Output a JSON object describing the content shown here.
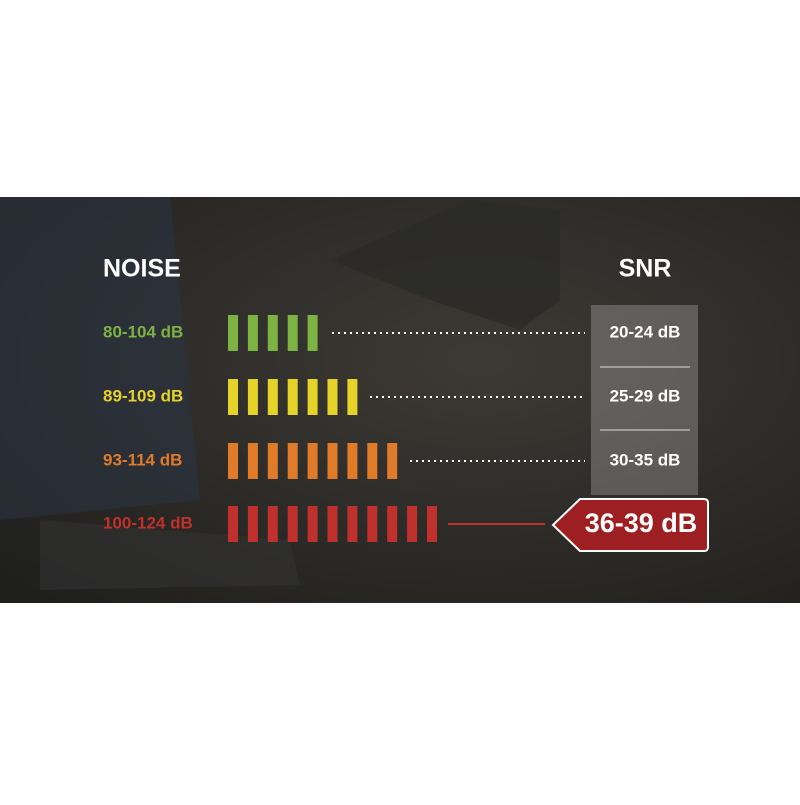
{
  "header": {
    "noise": "NOISE",
    "snr": "SNR"
  },
  "rows": [
    {
      "noise": "80-104 dB",
      "snr": "20-24 dB"
    },
    {
      "noise": "89-109 dB",
      "snr": "25-29 dB"
    },
    {
      "noise": "93-114 dB",
      "snr": "30-35 dB"
    },
    {
      "noise": "100-124 dB",
      "snr": "36-39 dB"
    }
  ]
}
